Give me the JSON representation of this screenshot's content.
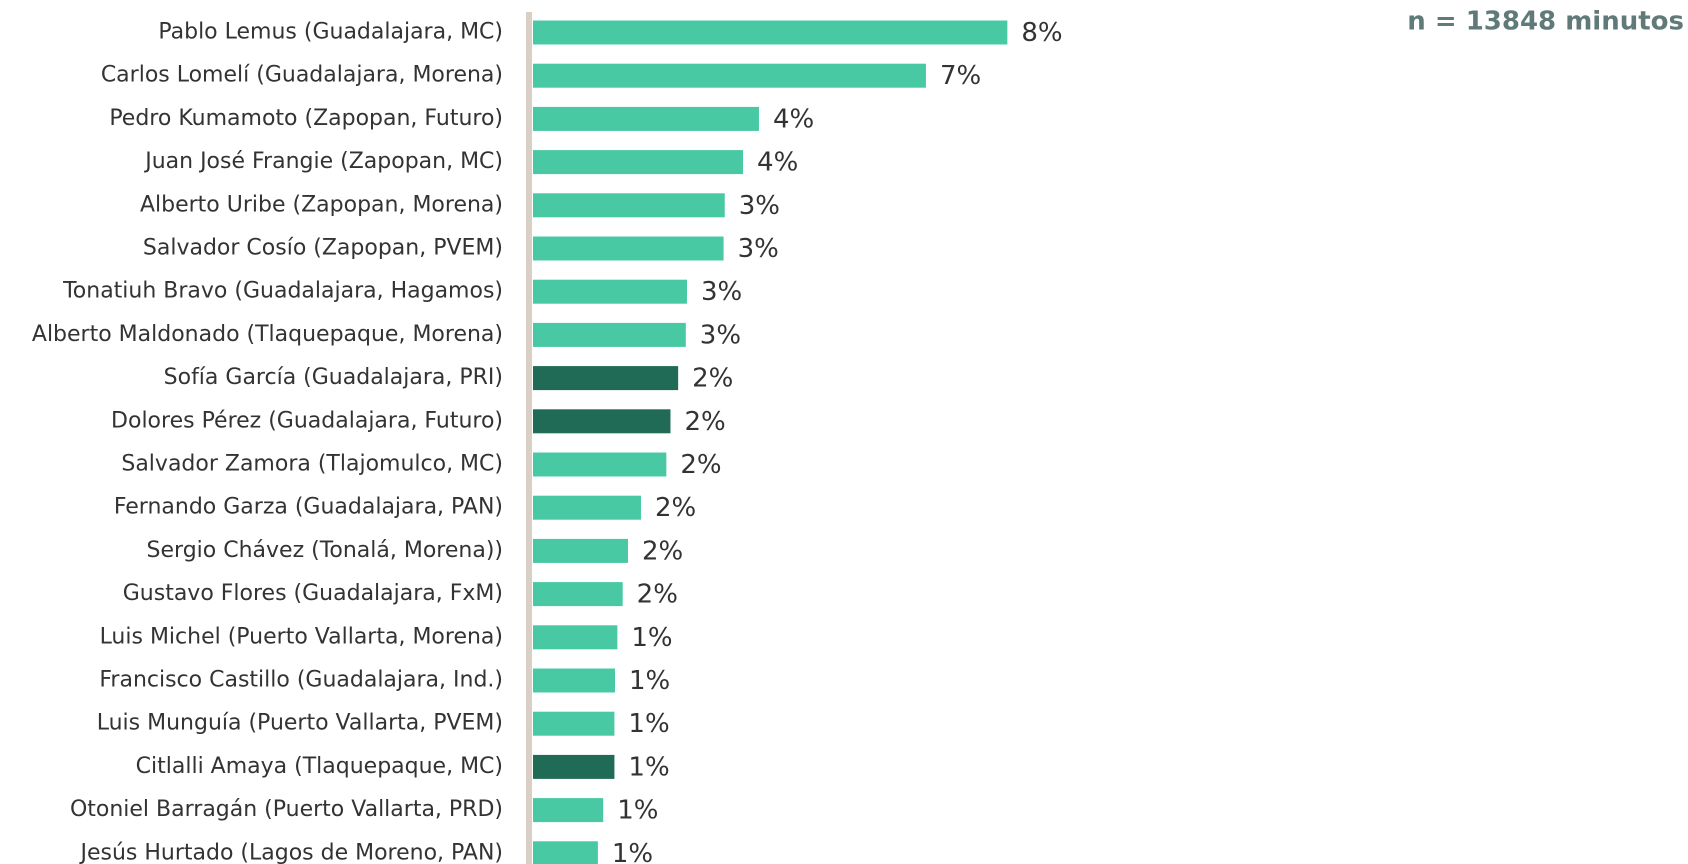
{
  "chart_data": {
    "type": "bar",
    "orientation": "horizontal",
    "annotation": "n = 13848 minutos",
    "categories": [
      "Pablo Lemus (Guadalajara, MC)",
      "Carlos Lomelí (Guadalajara, Morena)",
      "Pedro Kumamoto (Zapopan, Futuro)",
      "Juan José Frangie (Zapopan, MC)",
      "Alberto Uribe (Zapopan, Morena)",
      "Salvador Cosío (Zapopan, PVEM)",
      "Tonatiuh Bravo (Guadalajara, Hagamos)",
      "Alberto Maldonado (Tlaquepaque, Morena)",
      "Sofía García (Guadalajara, PRI)",
      "Dolores Pérez (Guadalajara, Futuro)",
      "Salvador Zamora (Tlajomulco, MC)",
      "Fernando Garza (Guadalajara, PAN)",
      "Sergio Chávez (Tonalá, Morena))",
      "Gustavo Flores (Guadalajara, FxM)",
      "Luis Michel (Puerto Vallarta, Morena)",
      "Francisco Castillo (Guadalajara, Ind.)",
      "Luis Munguía (Puerto Vallarta, PVEM)",
      "Citlalli Amaya (Tlaquepaque, MC)",
      "Otoniel Barragán (Puerto Vallarta, PRD)",
      "Jesús Hurtado (Lagos de Moreno, PAN)"
    ],
    "values": [
      8.04,
      6.66,
      3.83,
      3.56,
      3.25,
      3.23,
      2.61,
      2.59,
      2.46,
      2.33,
      2.26,
      1.83,
      1.61,
      1.52,
      1.43,
      1.39,
      1.38,
      1.38,
      1.19,
      1.1
    ],
    "value_labels": [
      "8%",
      "7%",
      "4%",
      "4%",
      "3%",
      "3%",
      "3%",
      "3%",
      "2%",
      "2%",
      "2%",
      "2%",
      "2%",
      "2%",
      "1%",
      "1%",
      "1%",
      "1%",
      "1%",
      "1%"
    ],
    "colors": [
      "#48c9a4",
      "#48c9a4",
      "#48c9a4",
      "#48c9a4",
      "#48c9a4",
      "#48c9a4",
      "#48c9a4",
      "#48c9a4",
      "#1f6b55",
      "#1f6b55",
      "#48c9a4",
      "#48c9a4",
      "#48c9a4",
      "#48c9a4",
      "#48c9a4",
      "#48c9a4",
      "#48c9a4",
      "#1f6b55",
      "#48c9a4",
      "#48c9a4"
    ]
  }
}
